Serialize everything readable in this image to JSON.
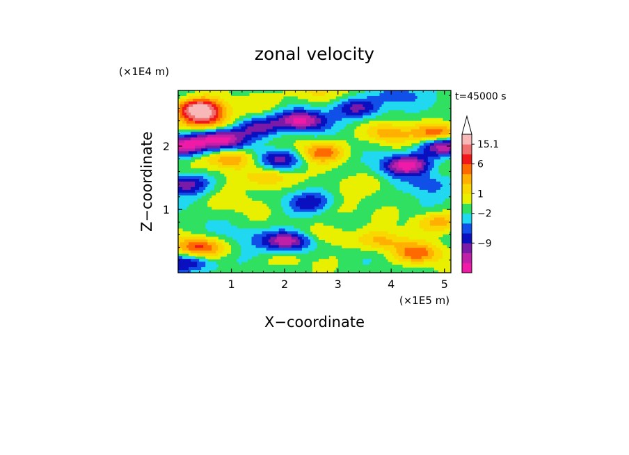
{
  "chart_data": {
    "type": "heatmap",
    "title": "zonal velocity",
    "xlabel": "X−coordinate",
    "ylabel": "Z−coordinate",
    "x_unit": "(×1E5 m)",
    "y_unit": "(×1E4 m)",
    "time_label": "t=45000 s",
    "xlim": [
      0,
      5.12
    ],
    "ylim": [
      0,
      2.88
    ],
    "x_ticks": [
      1,
      2,
      3,
      4,
      5
    ],
    "x_tick_labels": [
      "1",
      "2",
      "3",
      "4",
      "5"
    ],
    "y_ticks": [
      1,
      2
    ],
    "y_tick_labels": [
      "1",
      "2"
    ],
    "colorbar": {
      "labels": [
        "15.1",
        "6",
        "1",
        "−2",
        "−9"
      ],
      "label_values": [
        15.1,
        6,
        1,
        -2,
        -9
      ],
      "bins": [
        {
          "color": "#f01aa8"
        },
        {
          "color": "#c020a8"
        },
        {
          "color": "#7a1aa8"
        },
        {
          "color": "#0a10c0"
        },
        {
          "color": "#1050e8"
        },
        {
          "color": "#20d8f0"
        },
        {
          "color": "#30e060"
        },
        {
          "color": "#e8f000"
        },
        {
          "color": "#f8d800"
        },
        {
          "color": "#ffb000"
        },
        {
          "color": "#ff6a00"
        },
        {
          "color": "#f01818"
        },
        {
          "color": "#f07070"
        },
        {
          "color": "#f8b8b8"
        }
      ],
      "extend_max": true
    },
    "field_features": [
      {
        "x": 0.8,
        "z": 2.1,
        "level": -6
      },
      {
        "x": 1.5,
        "z": 2.3,
        "level": -4
      },
      {
        "x": 2.3,
        "z": 2.4,
        "level": -6
      },
      {
        "x": 3.4,
        "z": 2.6,
        "level": -4
      },
      {
        "x": 4.3,
        "z": 1.7,
        "level": -6
      },
      {
        "x": 1.9,
        "z": 1.8,
        "level": -4
      },
      {
        "x": 2.05,
        "z": 0.5,
        "level": -6
      },
      {
        "x": 0.1,
        "z": 2.0,
        "level": -6
      },
      {
        "x": 0.15,
        "z": 1.4,
        "level": -4
      },
      {
        "x": 0.2,
        "z": 0.15,
        "level": -4
      },
      {
        "x": 5.0,
        "z": 2.0,
        "level": -6
      },
      {
        "x": 2.5,
        "z": 1.1,
        "level": -3
      },
      {
        "x": 0.4,
        "z": 2.6,
        "level": 7
      },
      {
        "x": 0.5,
        "z": 2.4,
        "level": 5
      },
      {
        "x": 4.9,
        "z": 2.2,
        "level": 5
      },
      {
        "x": 1.0,
        "z": 1.8,
        "level": 4
      },
      {
        "x": 2.7,
        "z": 1.9,
        "level": 4
      },
      {
        "x": 0.4,
        "z": 0.4,
        "level": 5
      },
      {
        "x": 4.5,
        "z": 0.3,
        "level": 4
      },
      {
        "x": 3.8,
        "z": 0.5,
        "level": 3
      },
      {
        "x": 1.7,
        "z": 1.5,
        "level": 3
      },
      {
        "x": 3.9,
        "z": 2.2,
        "level": 3
      },
      {
        "x": 3.0,
        "z": 1.0,
        "level": 1
      },
      {
        "x": 1.0,
        "z": 1.1,
        "level": 1
      },
      {
        "x": 3.6,
        "z": 1.4,
        "level": 1
      },
      {
        "x": 2.8,
        "z": 0.6,
        "level": 2
      },
      {
        "x": 1.2,
        "z": 0.6,
        "level": -1
      },
      {
        "x": 4.4,
        "z": 1.0,
        "level": 0
      },
      {
        "x": 2.0,
        "z": 0.2,
        "level": 1
      },
      {
        "x": 3.3,
        "z": 0.2,
        "level": 0
      },
      {
        "x": 4.9,
        "z": 0.8,
        "level": 3
      },
      {
        "x": 4.7,
        "z": 1.4,
        "level": -2
      },
      {
        "x": 1.6,
        "z": 2.7,
        "level": 1
      },
      {
        "x": 4.1,
        "z": 2.8,
        "level": -2
      },
      {
        "x": 2.5,
        "z": 2.85,
        "level": 2
      }
    ]
  }
}
